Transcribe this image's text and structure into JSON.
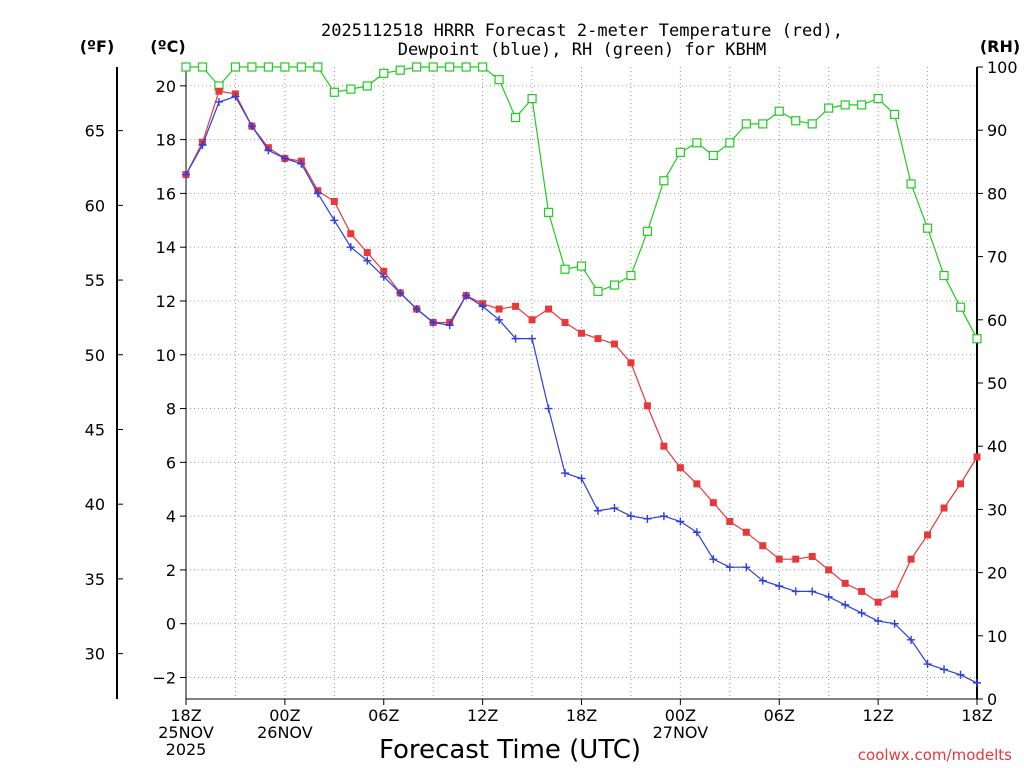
{
  "chart_data": {
    "type": "line",
    "title_line1": "2025112518 HRRR Forecast 2-meter Temperature (red),",
    "title_line2": "Dewpoint (blue), RH (green) for KBHM",
    "xlabel": "Forecast Time (UTC)",
    "credit": "coolwx.com/modelts",
    "unit_left_f": "(ºF)",
    "unit_left_c": "(ºC)",
    "unit_right_rh": "(RH)",
    "x_range_hours": [
      0,
      48
    ],
    "x_ticks": [
      {
        "h": 0,
        "l1": "18Z",
        "l2": "25NOV",
        "l3": "2025"
      },
      {
        "h": 6,
        "l1": "00Z",
        "l2": "26NOV",
        "l3": ""
      },
      {
        "h": 12,
        "l1": "06Z",
        "l2": "",
        "l3": ""
      },
      {
        "h": 18,
        "l1": "12Z",
        "l2": "",
        "l3": ""
      },
      {
        "h": 24,
        "l1": "18Z",
        "l2": "",
        "l3": ""
      },
      {
        "h": 30,
        "l1": "00Z",
        "l2": "27NOV",
        "l3": ""
      },
      {
        "h": 36,
        "l1": "06Z",
        "l2": "",
        "l3": ""
      },
      {
        "h": 42,
        "l1": "12Z",
        "l2": "",
        "l3": ""
      },
      {
        "h": 48,
        "l1": "18Z",
        "l2": "",
        "l3": ""
      }
    ],
    "y_c_range": [
      -2.8,
      20.7
    ],
    "y_c_ticks": [
      -2,
      0,
      2,
      4,
      6,
      8,
      10,
      12,
      14,
      16,
      18,
      20
    ],
    "y_f_ticks": [
      30,
      35,
      40,
      45,
      50,
      55,
      60,
      65
    ],
    "y_rh_range": [
      0,
      100
    ],
    "y_rh_ticks": [
      0,
      10,
      20,
      30,
      40,
      50,
      60,
      70,
      80,
      90,
      100
    ],
    "series": [
      {
        "name": "2-meter Temperature",
        "unit": "C",
        "color": "#e8383a",
        "marker": "filled-square",
        "values": [
          16.7,
          17.9,
          19.8,
          19.7,
          18.5,
          17.7,
          17.3,
          17.2,
          16.1,
          15.7,
          14.5,
          13.8,
          13.1,
          12.3,
          11.7,
          11.2,
          11.2,
          12.2,
          11.9,
          11.7,
          11.8,
          11.3,
          11.7,
          11.2,
          10.8,
          10.6,
          10.4,
          9.7,
          8.1,
          6.6,
          5.8,
          5.2,
          4.5,
          3.8,
          3.4,
          2.9,
          2.4,
          2.4,
          2.5,
          2.0,
          1.5,
          1.2,
          0.8,
          1.1,
          2.4,
          3.3,
          4.3,
          5.2,
          6.2
        ]
      },
      {
        "name": "Dewpoint",
        "unit": "C",
        "color": "#2b3fe0",
        "marker": "plus",
        "values": [
          16.7,
          17.8,
          19.4,
          19.6,
          18.5,
          17.6,
          17.3,
          17.1,
          16.0,
          15.0,
          14.0,
          13.5,
          12.9,
          12.3,
          11.7,
          11.2,
          11.1,
          12.2,
          11.8,
          11.3,
          10.6,
          10.6,
          8.0,
          5.6,
          5.4,
          4.2,
          4.3,
          4.0,
          3.9,
          4.0,
          3.8,
          3.4,
          2.4,
          2.1,
          2.1,
          1.6,
          1.4,
          1.2,
          1.2,
          1.0,
          0.7,
          0.4,
          0.1,
          0.0,
          -0.6,
          -1.5,
          -1.7,
          -1.9,
          -2.2
        ]
      },
      {
        "name": "RH",
        "unit": "%",
        "color": "#22cc22",
        "marker": "open-square",
        "values": [
          100,
          100,
          97,
          100,
          100,
          100,
          100,
          100,
          100,
          96,
          96.5,
          97,
          99,
          99.5,
          100,
          100,
          100,
          100,
          100,
          98,
          92,
          95,
          77,
          68,
          68.5,
          64.5,
          65.5,
          67,
          74,
          82,
          86.5,
          88,
          86,
          88,
          91,
          91,
          93,
          91.5,
          91,
          93.5,
          94,
          94,
          95,
          92.5,
          81.5,
          74.5,
          67,
          62,
          57
        ]
      }
    ]
  }
}
